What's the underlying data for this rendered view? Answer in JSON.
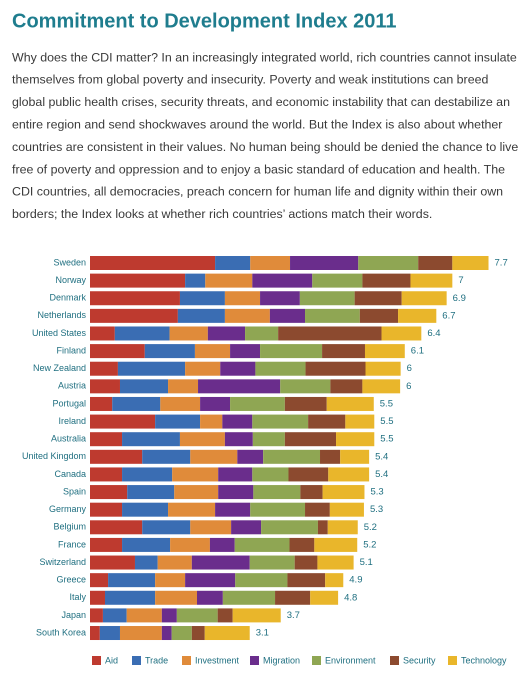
{
  "chart_data": {
    "type": "bar",
    "orientation": "horizontal",
    "stacked": true,
    "title": "Commitment to Development Index 2011",
    "description_lines": [
      "Why does the CDI matter? In an increasingly integrated world, rich countries cannot insulate",
      "themselves from global poverty and insecurity. Poverty and weak institutions can breed",
      "global public health crises, security threats, and economic instability that can destabilize an",
      "entire region and send shockwaves around the world. But the Index is also about whether",
      "countries are consistent in their values. No human being should be denied the chance to live",
      "free of poverty and oppression and to enjoy a basic standard of education and health. The",
      "CDI countries, all democracies, preach concern for human life and dignity within their own",
      "borders; the Index looks at whether rich countries’ actions match their words."
    ],
    "categories": [
      "Sweden",
      "Norway",
      "Denmark",
      "Netherlands",
      "United States",
      "Finland",
      "New Zealand",
      "Austria",
      "Portugal",
      "Ireland",
      "Australia",
      "United Kingdom",
      "Canada",
      "Spain",
      "Germany",
      "Belgium",
      "France",
      "Switzerland",
      "Greece",
      "Italy",
      "Japan",
      "South Korea"
    ],
    "totals": [
      7.7,
      7.0,
      6.9,
      6.7,
      6.4,
      6.1,
      6.0,
      6.0,
      5.5,
      5.5,
      5.5,
      5.4,
      5.4,
      5.3,
      5.3,
      5.2,
      5.2,
      5.1,
      4.9,
      4.8,
      3.7,
      3.1
    ],
    "series": [
      {
        "name": "Aid",
        "color": "#be3a2f",
        "values": [
          2.42,
          1.84,
          1.74,
          1.7,
          0.48,
          1.06,
          0.54,
          0.58,
          0.43,
          1.26,
          0.62,
          1.01,
          0.62,
          0.72,
          0.62,
          1.01,
          0.62,
          0.87,
          0.35,
          0.29,
          0.25,
          0.19
        ]
      },
      {
        "name": "Trade",
        "color": "#3a6db3",
        "values": [
          0.68,
          0.39,
          0.87,
          0.91,
          1.06,
          0.97,
          1.3,
          0.93,
          0.93,
          0.87,
          1.12,
          0.93,
          0.97,
          0.91,
          0.89,
          0.93,
          0.93,
          0.44,
          0.91,
          0.97,
          0.46,
          0.39
        ]
      },
      {
        "name": "Investment",
        "color": "#e08b3a",
        "values": [
          0.77,
          0.91,
          0.68,
          0.87,
          0.74,
          0.68,
          0.68,
          0.58,
          0.77,
          0.43,
          0.87,
          0.91,
          0.89,
          0.85,
          0.91,
          0.79,
          0.77,
          0.66,
          0.58,
          0.81,
          0.68,
          0.81
        ]
      },
      {
        "name": "Migration",
        "color": "#6a2d8c",
        "values": [
          1.32,
          1.16,
          0.77,
          0.68,
          0.72,
          0.58,
          0.68,
          1.59,
          0.58,
          0.58,
          0.54,
          0.5,
          0.66,
          0.68,
          0.68,
          0.58,
          0.48,
          1.12,
          0.97,
          0.5,
          0.29,
          0.19
        ]
      },
      {
        "name": "Environment",
        "color": "#8fa653",
        "values": [
          1.16,
          0.97,
          1.06,
          1.06,
          0.64,
          1.2,
          0.97,
          0.97,
          1.06,
          1.08,
          0.62,
          1.1,
          0.7,
          0.91,
          1.06,
          1.1,
          1.06,
          0.87,
          1.01,
          1.01,
          0.79,
          0.39
        ]
      },
      {
        "name": "Security",
        "color": "#8c4a2f",
        "values": [
          0.66,
          0.93,
          0.91,
          0.74,
          2.0,
          0.83,
          1.16,
          0.62,
          0.81,
          0.72,
          0.99,
          0.39,
          0.77,
          0.43,
          0.48,
          0.19,
          0.48,
          0.44,
          0.73,
          0.68,
          0.29,
          0.25
        ]
      },
      {
        "name": "Technology",
        "color": "#e9b62b",
        "values": [
          0.7,
          0.81,
          0.87,
          0.74,
          0.77,
          0.77,
          0.68,
          0.73,
          0.91,
          0.56,
          0.74,
          0.56,
          0.79,
          0.81,
          0.66,
          0.58,
          0.83,
          0.7,
          0.35,
          0.54,
          0.93,
          0.87
        ]
      }
    ]
  }
}
